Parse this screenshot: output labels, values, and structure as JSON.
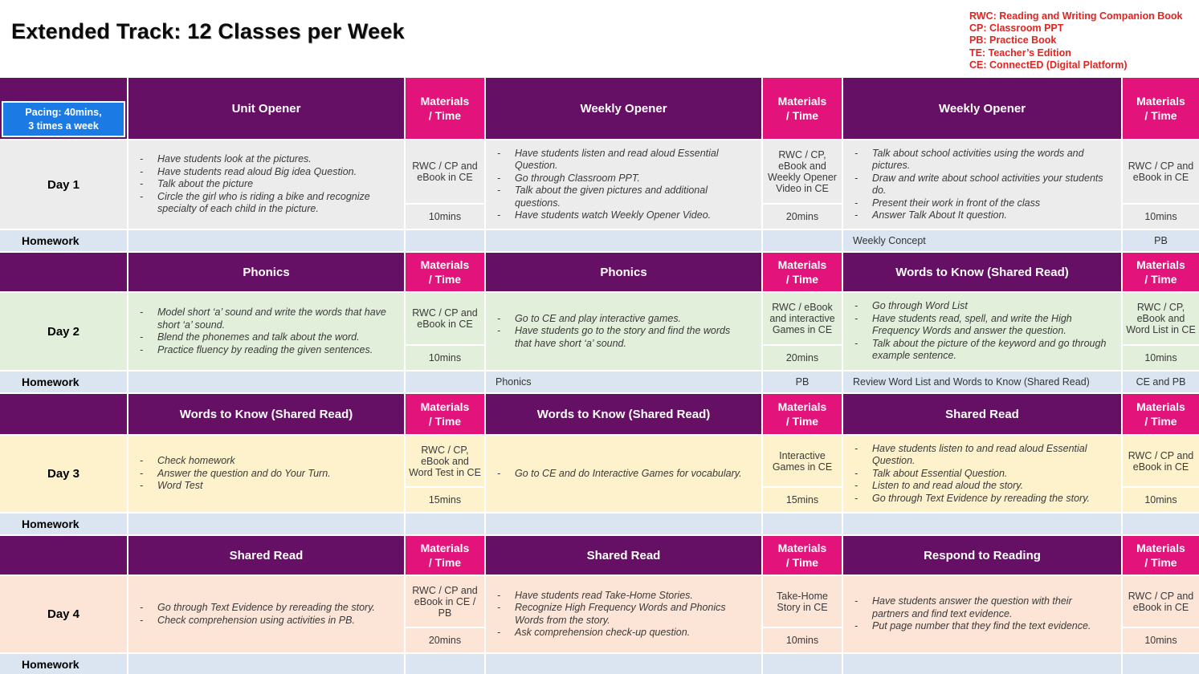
{
  "page": {
    "title": "Extended Track: 12 Classes per Week",
    "pacing_line1": "Pacing: 40mins,",
    "pacing_line2": "3 times a week",
    "materials_header_line1": "Materials",
    "materials_header_line2": "/ Time",
    "homework_label": "Homework",
    "bullet_dash": "-"
  },
  "legend": [
    "RWC: Reading and Writing Companion Book",
    "CP: Classroom PPT",
    "PB: Practice Book",
    "TE: Teacher’s Edition",
    "CE: ConnectED (Digital Platform)"
  ],
  "colors": {
    "header_purple": "#650f65",
    "materials_pink": "#e3137c",
    "pacing_blue": "#1b7ae4",
    "homework_blue": "#dbe5f1",
    "legend_red": "#e32420",
    "day_row_colors": [
      "#ececec",
      "#e2efda",
      "#fdf2cb",
      "#fce4d6"
    ]
  },
  "blocks": [
    {
      "day": "Day 1",
      "row_color": "#ececec",
      "sections": [
        {
          "header": "Unit Opener",
          "bullets": [
            "Have students look at the pictures.",
            "Have students read aloud Big idea Question.",
            "Talk about the picture",
            "Circle the girl who is riding a bike and recognize specialty of each child in the picture."
          ],
          "materials": "RWC / CP and eBook in CE",
          "time": "10mins"
        },
        {
          "header": "Weekly Opener",
          "bullets": [
            "Have students listen and read aloud Essential Question.",
            "Go through Classroom PPT.",
            "Talk about the given pictures and additional questions.",
            "Have students watch Weekly Opener Video."
          ],
          "materials": "RWC / CP, eBook and Weekly Opener Video in CE",
          "time": "20mins"
        },
        {
          "header": "Weekly Opener",
          "bullets": [
            "Talk about school activities using the words and pictures.",
            "Draw and write about school activities your students do.",
            "Present their work in front of the class",
            "Answer Talk About It question."
          ],
          "materials": "RWC / CP and eBook in CE",
          "time": "10mins"
        }
      ],
      "homework": [
        "",
        "",
        "",
        "",
        "Weekly Concept",
        "PB"
      ]
    },
    {
      "day": "Day 2",
      "row_color": "#e2efda",
      "sections": [
        {
          "header": "Phonics",
          "bullets": [
            "Model short ‘a’ sound and write the words that have short ‘a’ sound.",
            "Blend the phonemes and talk about the word.",
            "Practice fluency by reading the given sentences."
          ],
          "materials": "RWC / CP and eBook in CE",
          "time": "10mins"
        },
        {
          "header": "Phonics",
          "bullets": [
            "Go to CE and play interactive games.",
            "Have students go to the story and find the words that have short ‘a’ sound."
          ],
          "materials": "RWC / eBook and interactive Games in CE",
          "time": "20mins"
        },
        {
          "header": "Words to Know (Shared Read)",
          "bullets": [
            "Go through Word List",
            "Have students read, spell, and write the High Frequency Words and answer the question.",
            "Talk about the picture of the keyword and go through example sentence."
          ],
          "materials": "RWC / CP, eBook and Word List in CE",
          "time": "10mins"
        }
      ],
      "homework": [
        "",
        "",
        "Phonics",
        "PB",
        "Review Word List and Words to Know (Shared Read)",
        "CE and PB"
      ]
    },
    {
      "day": "Day 3",
      "row_color": "#fdf2cb",
      "sections": [
        {
          "header": "Words to Know (Shared Read)",
          "bullets": [
            "Check homework",
            "Answer the question and do Your Turn.",
            "Word Test"
          ],
          "materials": "RWC / CP, eBook and Word Test in CE",
          "time": "15mins"
        },
        {
          "header": "Words to Know (Shared Read)",
          "bullets": [
            "Go to CE and do Interactive Games for vocabulary."
          ],
          "materials": "Interactive Games in CE",
          "time": "15mins"
        },
        {
          "header": "Shared Read",
          "bullets": [
            "Have students listen to and read aloud Essential Question.",
            "Talk about Essential Question.",
            "Listen to and read aloud the story.",
            "Go through Text Evidence by rereading the story."
          ],
          "materials": "RWC / CP and eBook in CE",
          "time": "10mins"
        }
      ],
      "homework": [
        "",
        "",
        "",
        "",
        "",
        ""
      ]
    },
    {
      "day": "Day 4",
      "row_color": "#fce4d6",
      "sections": [
        {
          "header": "Shared Read",
          "bullets": [
            "Go through Text Evidence by rereading the story.",
            "Check comprehension using activities in PB."
          ],
          "materials": "RWC / CP and eBook in CE / PB",
          "time": "20mins"
        },
        {
          "header": "Shared Read",
          "bullets": [
            "Have students read Take-Home Stories.",
            "Recognize High Frequency Words and Phonics Words from the story.",
            "Ask comprehension check-up question."
          ],
          "materials": "Take-Home Story in CE",
          "time": "10mins"
        },
        {
          "header": "Respond to Reading",
          "bullets": [
            "Have students answer the question with their partners and find text evidence.",
            "Put page number that they find the text evidence."
          ],
          "materials": "RWC / CP and eBook in CE",
          "time": "10mins"
        }
      ],
      "homework": [
        "",
        "",
        "",
        "",
        "",
        ""
      ]
    }
  ]
}
